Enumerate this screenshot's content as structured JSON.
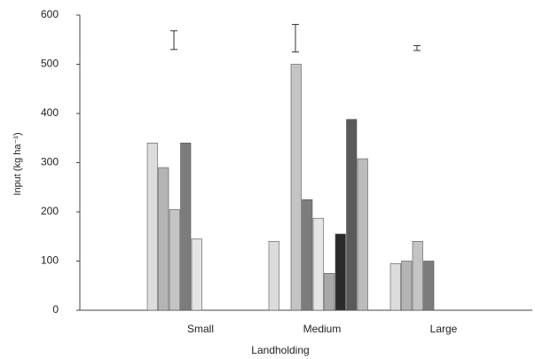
{
  "chart_data": {
    "type": "bar",
    "y_label": "Input (kg ha⁻¹)",
    "x_label": "Landholding",
    "categories": [
      "Small",
      "Medium",
      "Large"
    ],
    "series": [
      {
        "color": "#dcdcdc",
        "values": [
          340,
          140,
          95
        ]
      },
      {
        "color": "#b4b4b4",
        "values": [
          290,
          null,
          100
        ]
      },
      {
        "color": "#c4c4c4",
        "values": [
          205,
          500,
          140
        ]
      },
      {
        "color": "#7c7c7c",
        "values": [
          340,
          225,
          100
        ]
      },
      {
        "color": "#e4e4e4",
        "values": [
          145,
          187,
          null
        ]
      },
      {
        "color": "#a8a8a8",
        "values": [
          null,
          75,
          null
        ]
      },
      {
        "color": "#2a2a2a",
        "values": [
          null,
          155,
          null
        ]
      },
      {
        "color": "#5a5a5a",
        "values": [
          null,
          388,
          null
        ]
      },
      {
        "color": "#bcbcbc",
        "values": [
          null,
          308,
          null
        ]
      }
    ],
    "error_bars": {
      "values": [
        549,
        553,
        533
      ],
      "errors": [
        19,
        28,
        5
      ]
    },
    "ylim": [
      0,
      600
    ],
    "yticks": [
      0,
      100,
      200,
      300,
      400,
      500,
      600
    ]
  }
}
